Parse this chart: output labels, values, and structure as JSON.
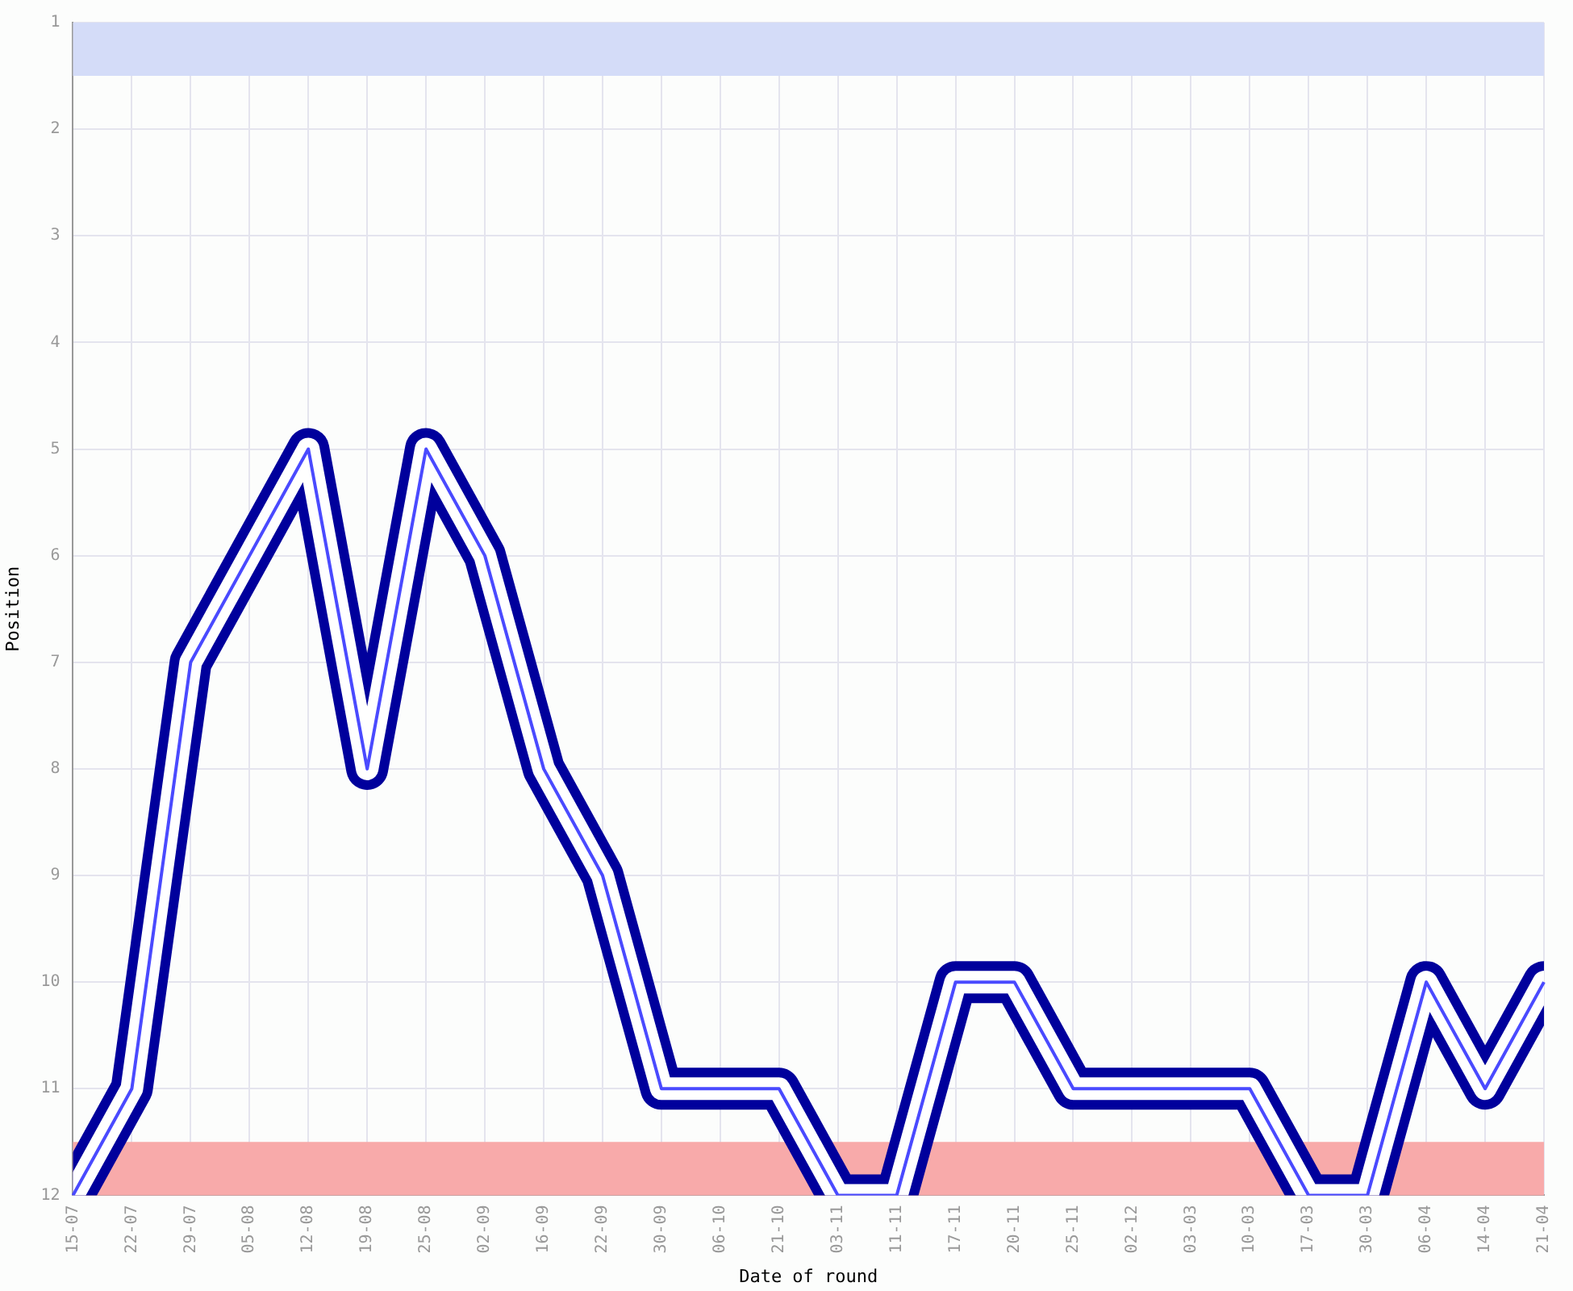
{
  "chart_data": {
    "type": "line",
    "xlabel": "Date of round",
    "ylabel": "Position",
    "categories": [
      "15-07",
      "22-07",
      "29-07",
      "05-08",
      "12-08",
      "19-08",
      "25-08",
      "02-09",
      "16-09",
      "22-09",
      "30-09",
      "06-10",
      "21-10",
      "03-11",
      "11-11",
      "17-11",
      "20-11",
      "25-11",
      "02-12",
      "03-03",
      "10-03",
      "17-03",
      "30-03",
      "06-04",
      "14-04",
      "21-04"
    ],
    "series": [
      {
        "color": "#00009c",
        "values": [
          12,
          11,
          7,
          6,
          5,
          8,
          5,
          6,
          8,
          9,
          11,
          11,
          11,
          12,
          12,
          10,
          10,
          11,
          11,
          11,
          11,
          12,
          12,
          10,
          11,
          10
        ]
      }
    ],
    "ylim": [
      12,
      1
    ],
    "yticks": [
      1,
      2,
      3,
      4,
      5,
      6,
      7,
      8,
      9,
      10,
      11,
      12
    ],
    "bands": [
      {
        "axis": "y",
        "from": 1,
        "to": 1.5,
        "color": "#d4dcf8"
      },
      {
        "axis": "y",
        "from": 11.5,
        "to": 12,
        "color": "#f8aaaa"
      }
    ],
    "grid": true,
    "legend": false,
    "marker": "none",
    "line_style": "solid"
  }
}
